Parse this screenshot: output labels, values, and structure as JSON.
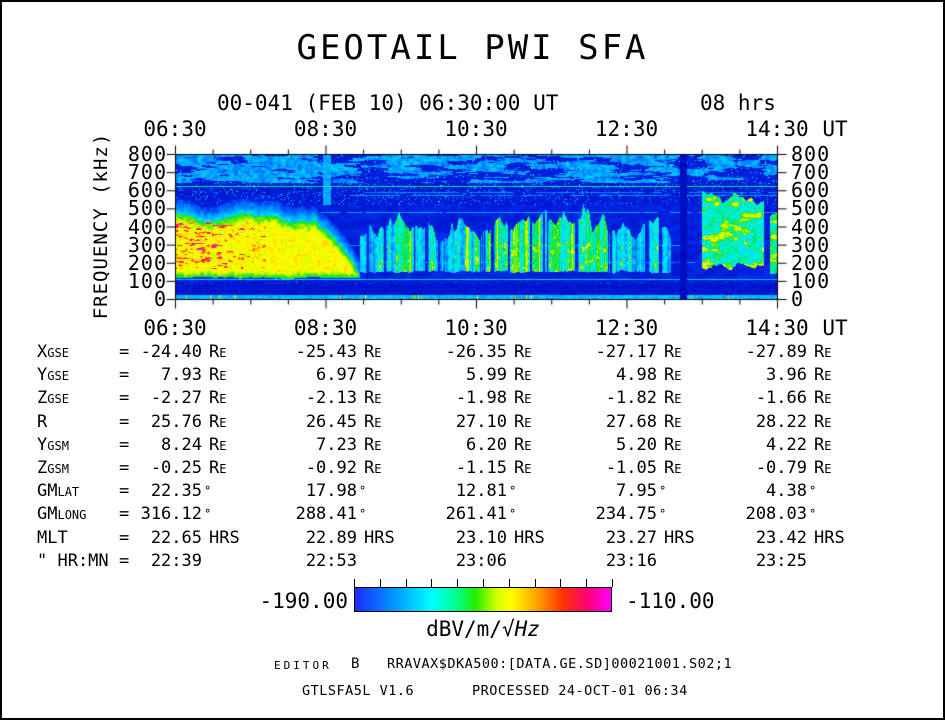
{
  "title": "GEOTAIL PWI SFA",
  "header": {
    "start_label": "00-041 (FEB 10) 06:30:00 UT",
    "duration_label": "08 hrs"
  },
  "axes": {
    "time_labels": [
      "06:30",
      "08:30",
      "10:30",
      "12:30",
      "14:30"
    ],
    "time_unit": "UT",
    "freq_ticks": [
      "800",
      "700",
      "600",
      "500",
      "400",
      "300",
      "200",
      "100",
      "0"
    ],
    "y_title": "FREQUENCY (kHz)"
  },
  "units": {
    "re_big": "R",
    "re_small": "E",
    "deg": "°",
    "hrs": "HRS"
  },
  "ephemeris": {
    "equals": "=",
    "rows": [
      {
        "big": "X",
        "small": "GSE",
        "unit": "Re",
        "values": [
          "-24.40",
          "-25.43",
          "-26.35",
          "-27.17",
          "-27.89"
        ]
      },
      {
        "big": "Y",
        "small": "GSE",
        "unit": "Re",
        "values": [
          "7.93",
          "6.97",
          "5.99",
          "4.98",
          "3.96"
        ]
      },
      {
        "big": "Z",
        "small": "GSE",
        "unit": "Re",
        "values": [
          "-2.27",
          "-2.13",
          "-1.98",
          "-1.82",
          "-1.66"
        ]
      },
      {
        "big": "R",
        "small": "",
        "unit": "Re",
        "values": [
          "25.76",
          "26.45",
          "27.10",
          "27.68",
          "28.22"
        ]
      },
      {
        "big": "Y",
        "small": "GSM",
        "unit": "Re",
        "values": [
          "8.24",
          "7.23",
          "6.20",
          "5.20",
          "4.22"
        ]
      },
      {
        "big": "Z",
        "small": "GSM",
        "unit": "Re",
        "values": [
          "-0.25",
          "-0.92",
          "-1.15",
          "-1.05",
          "-0.79"
        ]
      },
      {
        "big": "GM",
        "small": "LAT",
        "unit": "deg",
        "values": [
          "22.35",
          "17.98",
          "12.81",
          "7.95",
          "4.38"
        ]
      },
      {
        "big": "GM",
        "small": "LONG",
        "unit": "deg",
        "values": [
          "316.12",
          "288.41",
          "261.41",
          "234.75",
          "208.03"
        ]
      },
      {
        "big": "MLT",
        "small": "",
        "unit": "HRS",
        "values": [
          "22.65",
          "22.89",
          "23.10",
          "23.27",
          "23.42"
        ]
      },
      {
        "big": "\" HR:MN",
        "small": "",
        "unit": "",
        "values": [
          "22:39",
          "22:53",
          "23:06",
          "23:16",
          "23:25"
        ]
      }
    ]
  },
  "colorbar": {
    "min_label": "-190.00",
    "max_label": "-110.00",
    "unit_prefix": "dBV/m/",
    "unit_sqrt": "√",
    "unit_quantity": "Hz",
    "bar_stops": [
      "#1a2aff 0%",
      "#00aaff 18%",
      "#00ffff 30%",
      "#00ff88 40%",
      "#22ee00 47%",
      "#ccff00 55%",
      "#ffff00 61%",
      "#ff9900 72%",
      "#ff3300 81%",
      "#ff0077 91%",
      "#ff00ff 100%"
    ]
  },
  "footer": {
    "editor_label": "EDITOR",
    "editor_value": "B",
    "file": "RRAVAX$DKA500:[DATA.GE.SD]00021001.S02;1",
    "program": "GTLSFA5L V1.6",
    "processed": "PROCESSED 24-OCT-01  06:34"
  },
  "chart_data": {
    "type": "heatmap",
    "title": "GEOTAIL PWI SFA",
    "subtitle": "00-041 (FEB 10) 06:30:00 UT, 08 hrs",
    "x": {
      "label": "UT",
      "start_hour": 6.5,
      "end_hour": 14.5,
      "tick_labels": [
        "06:30",
        "08:30",
        "10:30",
        "12:30",
        "14:30"
      ],
      "minor_tick_minutes": 30
    },
    "y": {
      "label": "FREQUENCY (kHz)",
      "min": 0,
      "max": 800,
      "tick_step": 100
    },
    "z": {
      "label": "dBV/m/√Hz",
      "min": -190,
      "max": -110
    },
    "colormap_stops": [
      [
        0.0,
        "#000080"
      ],
      [
        0.06,
        "#0010c8"
      ],
      [
        0.12,
        "#0028e8"
      ],
      [
        0.2,
        "#0060ff"
      ],
      [
        0.28,
        "#00aaff"
      ],
      [
        0.36,
        "#00e8ff"
      ],
      [
        0.44,
        "#00efb0"
      ],
      [
        0.5,
        "#00e050"
      ],
      [
        0.56,
        "#55e800"
      ],
      [
        0.62,
        "#d8f800"
      ],
      [
        0.68,
        "#ffff00"
      ],
      [
        0.76,
        "#ff9900"
      ],
      [
        0.84,
        "#ff3300"
      ],
      [
        0.92,
        "#ff0080"
      ],
      [
        1.0,
        "#ff00ff"
      ]
    ],
    "features": [
      {
        "kind": "background",
        "level": 0.1
      },
      {
        "kind": "top_band",
        "f_min": 640,
        "f_max": 800,
        "level": 0.27,
        "dark_patches_after_hour": 8.4
      },
      {
        "kind": "speckle_zone",
        "f_min": 520,
        "f_max": 640,
        "level": 0.09
      },
      {
        "kind": "quiet_band",
        "f_min": 24,
        "f_max": 100,
        "level": 0.075
      },
      {
        "kind": "bottom_strip",
        "f_min": 0,
        "f_max": 24,
        "level": 0.3
      },
      {
        "kind": "continuum_left",
        "t_start": 6.5,
        "t_end": 8.95,
        "f_bottom": 110,
        "f_top_min": 390,
        "f_top_max": 545,
        "core_level": 0.62,
        "red_burst_until": 7.7
      },
      {
        "kind": "streak_cluster",
        "t_start": 8.95,
        "t_end": 9.25,
        "amp": 0.35
      },
      {
        "kind": "streak_cluster",
        "t_start": 9.25,
        "t_end": 10.05,
        "amp": 0.75
      },
      {
        "kind": "streak_cluster",
        "t_start": 10.05,
        "t_end": 10.2,
        "amp": 0.3
      },
      {
        "kind": "streak_cluster",
        "t_start": 10.2,
        "t_end": 11.35,
        "amp": 0.95
      },
      {
        "kind": "streak_cluster",
        "t_start": 11.35,
        "t_end": 12.35,
        "amp": 0.7
      },
      {
        "kind": "streak_cluster",
        "t_start": 12.35,
        "t_end": 13.15,
        "amp": 0.45
      },
      {
        "kind": "emission_patch",
        "t_start": 13.5,
        "t_end": 14.32,
        "f_min": 150,
        "f_max": 640,
        "level": 0.42
      },
      {
        "kind": "emission_patch",
        "t_start": 14.4,
        "t_end": 14.5,
        "f_min": 100,
        "f_max": 540,
        "level": 0.45
      },
      {
        "kind": "data_gap",
        "t_start": 13.21,
        "t_end": 13.3
      },
      {
        "kind": "light_column",
        "t_start": 8.46,
        "t_end": 8.56,
        "f_min": 520,
        "f_max": 800,
        "level": 0.28
      },
      {
        "kind": "hline",
        "f": 622,
        "half_width": 4.0,
        "level": 0.46,
        "t_start": 6.5,
        "t_end": 14.5
      },
      {
        "kind": "hline",
        "f": 112,
        "half_width": 3.5,
        "level": 0.32,
        "t_start": 6.5,
        "t_end": 14.5
      },
      {
        "kind": "hline",
        "f": 480,
        "half_width": 2.5,
        "level": 0.27,
        "t_start": 8.15,
        "t_end": 14.5
      },
      {
        "kind": "hline",
        "f": 575,
        "half_width": 2.2,
        "level": 0.25,
        "t_start": 8.8,
        "t_end": 14.5
      },
      {
        "kind": "hline",
        "f": 590,
        "half_width": 2.2,
        "level": 0.24,
        "t_start": 9.0,
        "t_end": 14.5
      },
      {
        "kind": "hline",
        "f": 300,
        "half_width": 2.5,
        "level": 0.25,
        "t_start": 8.6,
        "t_end": 13.3
      },
      {
        "kind": "hline",
        "f": 205,
        "half_width": 2.5,
        "level": 0.25,
        "t_start": 8.65,
        "t_end": 13.4
      }
    ]
  }
}
